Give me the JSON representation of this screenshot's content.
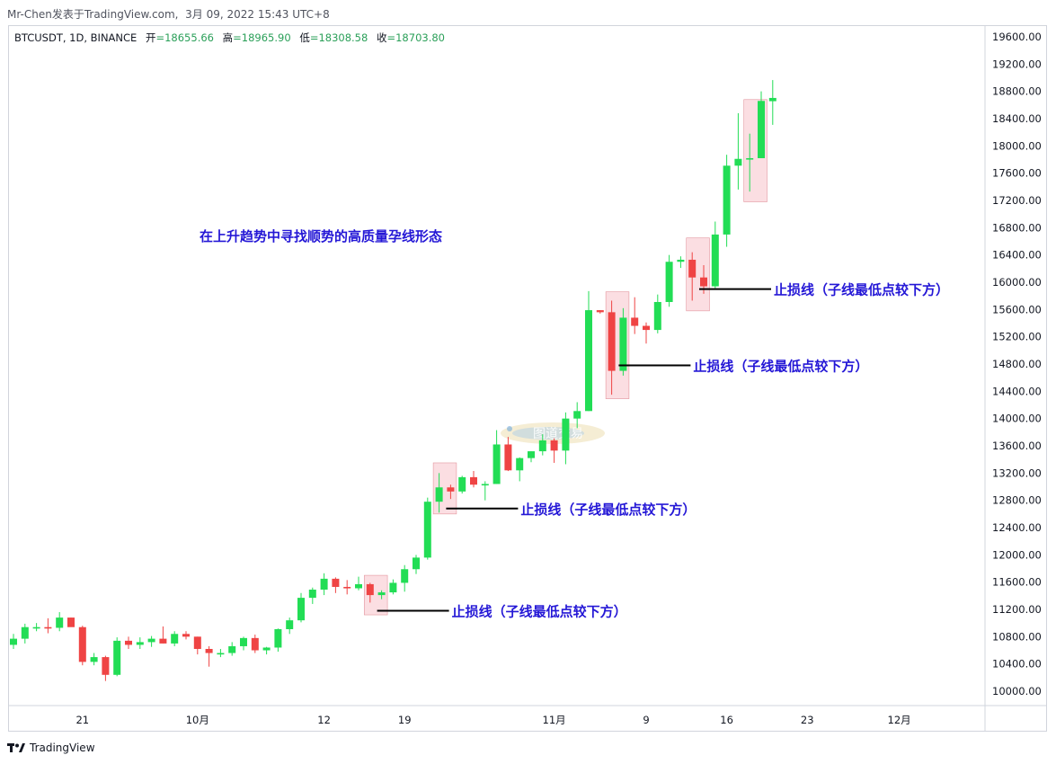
{
  "header": {
    "publisher": "Mr-Chen发表于TradingView.com",
    "date": "3月 09, 2022 15:43 UTC+8"
  },
  "footer": {
    "brand": "TradingView"
  },
  "colors": {
    "up": "#22dd55",
    "down": "#ef4444",
    "annotation_text": "#2417d6",
    "box_fill": "#f8c3cb",
    "box_stroke": "#d9707c",
    "ohlc_green": "#2a9f58",
    "grid_line": "#d1d4dc"
  },
  "chart_data": {
    "type": "candlestick",
    "symbol_line": {
      "symbol": "BTCUSDT, 1D, BINANCE",
      "open_label": "开",
      "open": "=18655.66",
      "high_label": "高",
      "high": "=18965.90",
      "low_label": "低",
      "low": "=18308.58",
      "close_label": "收",
      "close": "=18703.80"
    },
    "title": "在上升趋势中寻找顺势的高质量孕线形态",
    "ylim": [
      9800,
      19800
    ],
    "y_ticks": [
      "19600.00",
      "19200.00",
      "18800.00",
      "18400.00",
      "18000.00",
      "17600.00",
      "17200.00",
      "16800.00",
      "16400.00",
      "16000.00",
      "15600.00",
      "15200.00",
      "14800.00",
      "14400.00",
      "14000.00",
      "13600.00",
      "13200.00",
      "12800.00",
      "12400.00",
      "12000.00",
      "11600.00",
      "11200.00",
      "10800.00",
      "10400.00",
      "10000.00"
    ],
    "x_ticks": [
      {
        "label": "21",
        "index": 6
      },
      {
        "label": "10月",
        "index": 16
      },
      {
        "label": "12",
        "index": 27
      },
      {
        "label": "19",
        "index": 34
      },
      {
        "label": "11月",
        "index": 47
      },
      {
        "label": "9",
        "index": 55
      },
      {
        "label": "16",
        "index": 62
      },
      {
        "label": "23",
        "index": 69
      },
      {
        "label": "12月",
        "index": 77
      }
    ],
    "candles": [
      [
        10680,
        10840,
        10620,
        10770
      ],
      [
        10770,
        10990,
        10700,
        10940
      ],
      [
        10940,
        11000,
        10880,
        10940
      ],
      [
        10940,
        11070,
        10850,
        10930
      ],
      [
        10930,
        11160,
        10880,
        11080
      ],
      [
        11080,
        11080,
        10950,
        10940
      ],
      [
        10940,
        10960,
        10380,
        10430
      ],
      [
        10430,
        10560,
        10380,
        10500
      ],
      [
        10500,
        10520,
        10150,
        10240
      ],
      [
        10240,
        10790,
        10220,
        10740
      ],
      [
        10740,
        10800,
        10620,
        10680
      ],
      [
        10680,
        10790,
        10620,
        10720
      ],
      [
        10720,
        10810,
        10650,
        10770
      ],
      [
        10770,
        10950,
        10700,
        10700
      ],
      [
        10700,
        10880,
        10660,
        10840
      ],
      [
        10840,
        10880,
        10760,
        10800
      ],
      [
        10800,
        10800,
        10540,
        10620
      ],
      [
        10620,
        10660,
        10360,
        10560
      ],
      [
        10560,
        10620,
        10500,
        10560
      ],
      [
        10560,
        10720,
        10520,
        10660
      ],
      [
        10660,
        10800,
        10600,
        10780
      ],
      [
        10780,
        10830,
        10560,
        10600
      ],
      [
        10600,
        10650,
        10540,
        10640
      ],
      [
        10640,
        10920,
        10580,
        10910
      ],
      [
        10910,
        11080,
        10840,
        11040
      ],
      [
        11040,
        11440,
        11010,
        11370
      ],
      [
        11370,
        11520,
        11280,
        11490
      ],
      [
        11490,
        11730,
        11410,
        11650
      ],
      [
        11650,
        11670,
        11440,
        11530
      ],
      [
        11530,
        11630,
        11420,
        11510
      ],
      [
        11510,
        11680,
        11480,
        11570
      ],
      [
        11570,
        11590,
        11300,
        11410
      ],
      [
        11410,
        11480,
        11350,
        11450
      ],
      [
        11450,
        11640,
        11420,
        11590
      ],
      [
        11590,
        11850,
        11460,
        11790
      ],
      [
        11790,
        12000,
        11720,
        11960
      ],
      [
        11960,
        12840,
        11930,
        12780
      ],
      [
        12780,
        13200,
        12620,
        12990
      ],
      [
        12990,
        13030,
        12820,
        12930
      ],
      [
        12930,
        13160,
        12900,
        13140
      ],
      [
        13140,
        13230,
        12990,
        13030
      ],
      [
        13030,
        13080,
        12800,
        13040
      ],
      [
        13040,
        13830,
        13040,
        13620
      ],
      [
        13620,
        13730,
        13230,
        13240
      ],
      [
        13240,
        13430,
        13080,
        13420
      ],
      [
        13420,
        13520,
        13360,
        13520
      ],
      [
        13520,
        13770,
        13460,
        13680
      ],
      [
        13680,
        13710,
        13350,
        13530
      ],
      [
        13530,
        14090,
        13330,
        14000
      ],
      [
        14000,
        14240,
        13860,
        14110
      ],
      [
        14110,
        15870,
        14110,
        15590
      ],
      [
        15590,
        15590,
        15540,
        15560
      ],
      [
        15560,
        15730,
        14350,
        14700
      ],
      [
        14700,
        15620,
        14630,
        15480
      ],
      [
        15480,
        15780,
        15240,
        15360
      ],
      [
        15360,
        15410,
        15100,
        15300
      ],
      [
        15300,
        15820,
        15250,
        15710
      ],
      [
        15710,
        16400,
        15640,
        16300
      ],
      [
        16300,
        16380,
        16210,
        16330
      ],
      [
        16330,
        16440,
        15730,
        16070
      ],
      [
        16070,
        16250,
        15830,
        15940
      ],
      [
        15940,
        16890,
        15910,
        16700
      ],
      [
        16700,
        17870,
        16520,
        17710
      ],
      [
        17710,
        18480,
        17360,
        17810
      ],
      [
        17810,
        18180,
        17330,
        17820
      ],
      [
        17820,
        18800,
        17820,
        18660
      ],
      [
        18656,
        18966,
        18309,
        18704
      ]
    ],
    "stop_loss_annotations": [
      {
        "text": "止损线（子线最低点较下方）",
        "level": 11180,
        "box_start": 31,
        "box_end": 32,
        "box_low": 11120,
        "box_high": 11700
      },
      {
        "text": "止损线（子线最低点较下方）",
        "level": 12680,
        "box_start": 37,
        "box_end": 38,
        "box_low": 12600,
        "box_high": 13350
      },
      {
        "text": "止损线（子线最低点较下方）",
        "level": 14780,
        "box_start": 52,
        "box_end": 53,
        "box_low": 14290,
        "box_high": 15860
      },
      {
        "text": "止损线（子线最低点较下方）",
        "level": 15900,
        "box_start": 59,
        "box_end": 60,
        "box_low": 15580,
        "box_high": 16650
      }
    ],
    "watermark": "图道交易",
    "target_boxes": [
      {
        "box_start": 64,
        "box_end": 65,
        "box_low": 17180,
        "box_high": 18680
      }
    ]
  }
}
